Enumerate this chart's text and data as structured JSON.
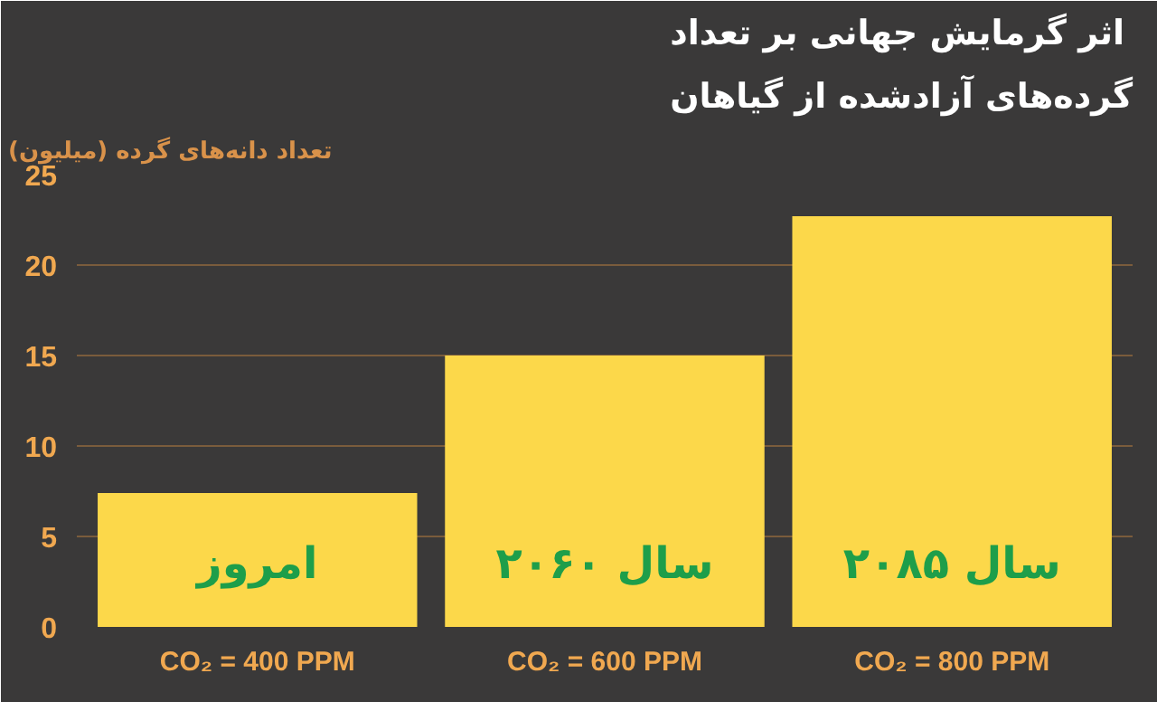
{
  "chart_data": {
    "type": "bar",
    "title": "اثر گرمایش جهانی بر تعداد\nگرده‌های آزادشده از گیاهان",
    "ylabel": "تعداد دانه‌های گرده (میلیون)",
    "categories": [
      "CO₂ = 400 PPM",
      "CO₂ = 600 PPM",
      "CO₂ = 800 PPM"
    ],
    "values": [
      7.4,
      15,
      22.7
    ],
    "color": "#fcd84a",
    "ylim": [
      0,
      25
    ],
    "yticks": [
      0,
      5,
      10,
      15,
      20,
      25
    ],
    "grid": "y",
    "annotations": [
      "امروز",
      "سال ۲۰۶۰",
      "سال ۲۰۸۵"
    ]
  }
}
